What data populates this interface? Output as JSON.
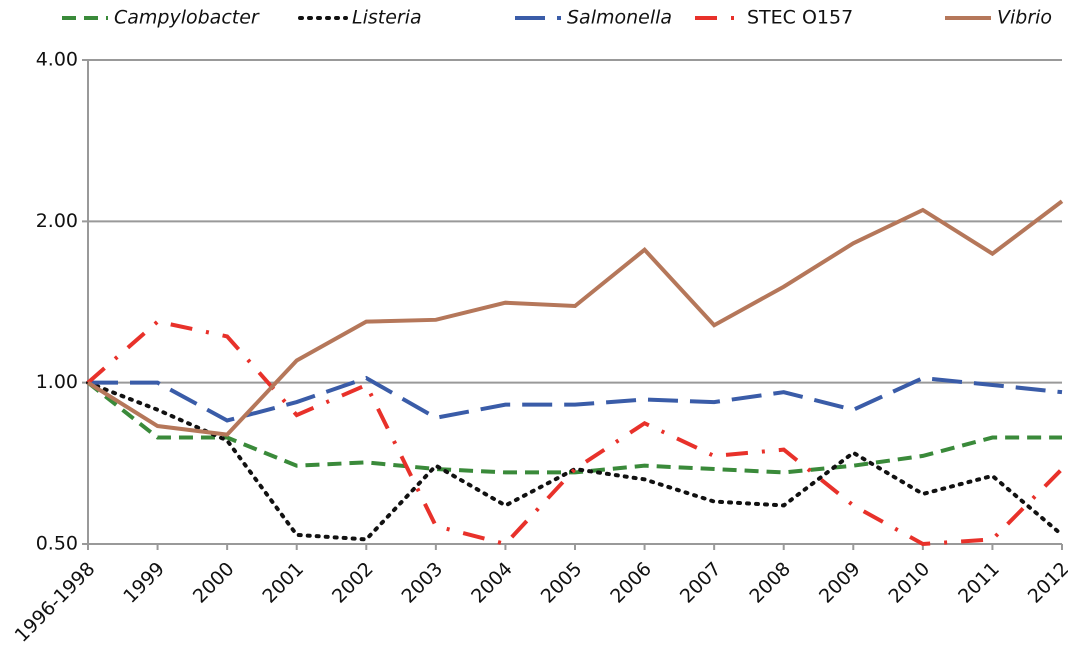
{
  "chart_data": {
    "type": "line",
    "categories": [
      "1996-1998",
      "1999",
      "2000",
      "2001",
      "2002",
      "2003",
      "2004",
      "2005",
      "2006",
      "2007",
      "2008",
      "2009",
      "2010",
      "2011",
      "2012"
    ],
    "series": [
      {
        "name": "Campylobacter",
        "color": "#3a8a3a",
        "dash": "dashed",
        "font_style": "italic",
        "values": [
          1.0,
          0.79,
          0.79,
          0.7,
          0.71,
          0.69,
          0.68,
          0.68,
          0.7,
          0.69,
          0.68,
          0.7,
          0.73,
          0.79,
          0.79
        ]
      },
      {
        "name": "Listeria",
        "color": "#111111",
        "dash": "dotted",
        "font_style": "italic",
        "values": [
          1.0,
          0.89,
          0.78,
          0.52,
          0.51,
          0.7,
          0.59,
          0.69,
          0.66,
          0.6,
          0.59,
          0.74,
          0.62,
          0.67,
          0.52
        ]
      },
      {
        "name": "Salmonella",
        "color": "#3a5ca8",
        "dash": "long-dash",
        "font_style": "italic",
        "values": [
          1.0,
          1.0,
          0.85,
          0.92,
          1.02,
          0.86,
          0.91,
          0.91,
          0.93,
          0.92,
          0.96,
          0.89,
          1.02,
          0.99,
          0.96
        ]
      },
      {
        "name": "STEC O157",
        "color": "#e8312a",
        "dash": "dash-dot",
        "font_style": "normal",
        "values": [
          1.0,
          1.3,
          1.22,
          0.87,
          0.99,
          0.54,
          0.5,
          0.69,
          0.84,
          0.73,
          0.75,
          0.59,
          0.5,
          0.51,
          0.69
        ]
      },
      {
        "name": "Vibrio",
        "color": "#b5775a",
        "dash": "solid",
        "font_style": "italic",
        "values": [
          1.0,
          0.83,
          0.8,
          1.1,
          1.3,
          1.31,
          1.41,
          1.39,
          1.77,
          1.28,
          1.51,
          1.82,
          2.1,
          1.74,
          2.18
        ]
      }
    ],
    "ylim": [
      0.5,
      4
    ],
    "yticks": [
      {
        "value": 0.5,
        "label": "0.50"
      },
      {
        "value": 1,
        "label": "1.00"
      },
      {
        "value": 2,
        "label": "2.00"
      },
      {
        "value": 4,
        "label": "4.00"
      }
    ],
    "log_scale": true,
    "grid": true,
    "legend": "top"
  }
}
